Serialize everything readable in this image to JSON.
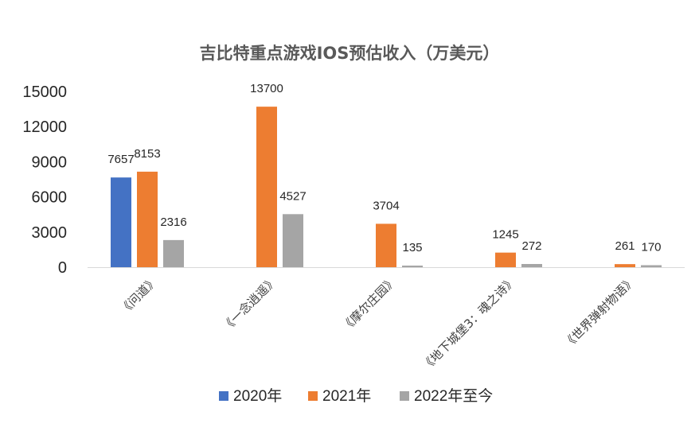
{
  "chart_data": {
    "type": "bar",
    "title": "吉比特重点游戏IOS预估收入（万美元）",
    "categories": [
      "《问道》",
      "《一念逍遥》",
      "《摩尔庄园》",
      "《地下城堡3：魂之诗》",
      "《世界弹射物语》"
    ],
    "series": [
      {
        "name": "2020年",
        "color": "#4472C4",
        "values": [
          7657,
          null,
          null,
          null,
          null
        ]
      },
      {
        "name": "2021年",
        "color": "#ED7D31",
        "values": [
          8153,
          13700,
          3704,
          1245,
          261
        ]
      },
      {
        "name": "2022年至今",
        "color": "#A5A5A5",
        "values": [
          2316,
          4527,
          135,
          272,
          170
        ]
      }
    ],
    "yticks": [
      "0",
      "3000",
      "6000",
      "9000",
      "12000",
      "15000"
    ],
    "ylim": [
      0,
      15000
    ],
    "grid": false,
    "legend_position": "bottom",
    "xlabel": "",
    "ylabel": ""
  }
}
